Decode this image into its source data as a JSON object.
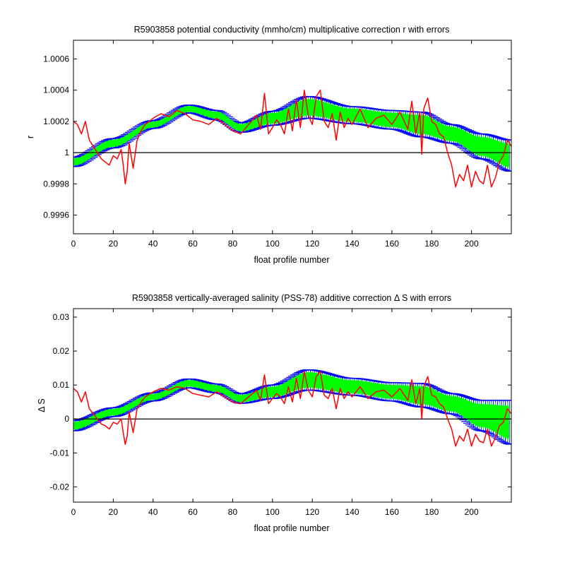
{
  "chart_data": [
    {
      "type": "line",
      "title": "R5903858 potential conductivity (mmho/cm) multiplicative correction r with errors",
      "xlabel": "float profile number",
      "ylabel": "r",
      "xlim": [
        0,
        220
      ],
      "ylim": [
        0.99948,
        1.00072
      ],
      "xticks": [
        0,
        20,
        40,
        60,
        80,
        100,
        120,
        140,
        160,
        180,
        200
      ],
      "xtick_labels": [
        "0",
        "20",
        "40",
        "60",
        "80",
        "100",
        "120",
        "140",
        "160",
        "180",
        "200"
      ],
      "yticks": [
        0.9996,
        0.9998,
        1.0,
        1.0002,
        1.0004,
        1.0006
      ],
      "ytick_labels": [
        "0.9996",
        "0.9998",
        "1",
        "1.0002",
        "1.0004",
        "1.0006"
      ],
      "reference_line": 1.0,
      "grid": false,
      "colors": {
        "fit": "#00ff00",
        "error": "#0000ff",
        "raw": "#ff0000",
        "ref": "#000000"
      },
      "fit_knots": {
        "x": [
          0,
          20,
          40,
          58,
          72,
          84,
          100,
          118,
          140,
          160,
          175,
          190,
          205,
          220
        ],
        "y": [
          0.99994,
          1.00006,
          1.00018,
          1.00028,
          1.00024,
          1.00016,
          1.00022,
          1.00029,
          1.00024,
          1.00021,
          1.00018,
          1.00012,
          1.00004,
          0.99998
        ]
      },
      "error_knots": {
        "x": [
          0,
          20,
          40,
          58,
          72,
          84,
          100,
          118,
          140,
          160,
          175,
          190,
          205,
          220
        ],
        "y": [
          3e-05,
          3e-05,
          2.5e-05,
          2.5e-05,
          3e-05,
          3e-05,
          4.5e-05,
          7e-05,
          5.5e-05,
          6e-05,
          8e-05,
          6e-05,
          8e-05,
          0.0001
        ]
      },
      "raw": {
        "x": [
          0,
          2,
          4,
          6,
          8,
          10,
          12,
          14,
          16,
          18,
          20,
          22,
          24,
          25,
          26,
          27,
          28,
          30,
          32,
          34,
          36,
          40,
          44,
          48,
          52,
          56,
          60,
          64,
          68,
          72,
          76,
          80,
          84,
          88,
          92,
          94,
          96,
          98,
          100,
          102,
          104,
          106,
          108,
          110,
          112,
          114,
          116,
          118,
          120,
          122,
          124,
          126,
          128,
          130,
          132,
          134,
          136,
          138,
          140,
          144,
          148,
          152,
          156,
          160,
          164,
          168,
          170,
          172,
          174,
          175,
          176,
          178,
          180,
          182,
          184,
          186,
          188,
          190,
          192,
          194,
          196,
          198,
          200,
          202,
          204,
          206,
          208,
          210,
          212,
          214,
          216,
          218,
          220
        ],
        "y": [
          1.0002,
          1.00018,
          1.00012,
          1.0002,
          1.00008,
          1.00004,
          1.0,
          0.99996,
          0.99994,
          0.99992,
          0.99998,
          0.99996,
          1.00002,
          0.99992,
          0.9998,
          0.99988,
          1.00006,
          0.9999,
          1.00008,
          1.00014,
          1.00018,
          1.00022,
          1.00025,
          1.00023,
          1.00027,
          1.00025,
          1.00021,
          1.0002,
          1.00018,
          1.00022,
          1.00018,
          1.00014,
          1.00012,
          1.00018,
          1.00024,
          1.00015,
          1.00038,
          1.00012,
          1.00016,
          1.00021,
          1.00018,
          1.00012,
          1.00028,
          1.00014,
          1.00034,
          1.00016,
          1.0004,
          1.00024,
          1.00018,
          1.00036,
          1.0004,
          1.0002,
          1.00016,
          1.00025,
          1.00008,
          1.00026,
          1.00016,
          1.00022,
          1.00018,
          1.00028,
          1.00016,
          1.00022,
          1.00024,
          1.00018,
          1.00026,
          1.00015,
          1.00033,
          1.00012,
          1.00026,
          0.99999,
          1.00028,
          1.00035,
          1.0002,
          1.00018,
          1.00012,
          1.0001,
          1.0,
          0.99992,
          0.99978,
          0.99986,
          0.99982,
          0.99992,
          0.99978,
          0.99988,
          0.99982,
          0.9998,
          0.99992,
          0.99978,
          0.99984,
          0.99994,
          0.99998,
          1.00008,
          1.00004
        ]
      }
    },
    {
      "type": "line",
      "title": "R5903858 vertically-averaged salinity (PSS-78) additive correction Δ S with errors",
      "xlabel": "float profile number",
      "ylabel": "Δ S",
      "xlim": [
        0,
        220
      ],
      "ylim": [
        -0.0245,
        0.0325
      ],
      "xticks": [
        0,
        20,
        40,
        60,
        80,
        100,
        120,
        140,
        160,
        180,
        200
      ],
      "xtick_labels": [
        "0",
        "20",
        "40",
        "60",
        "80",
        "100",
        "120",
        "140",
        "160",
        "180",
        "200"
      ],
      "yticks": [
        -0.02,
        -0.01,
        0,
        0.01,
        0.02,
        0.03
      ],
      "ytick_labels": [
        "-0.02",
        "-0.01",
        "0",
        "0.01",
        "0.02",
        "0.03"
      ],
      "reference_line": 0,
      "grid": false,
      "colors": {
        "fit": "#00ff00",
        "error": "#0000ff",
        "raw": "#ff0000",
        "ref": "#000000"
      },
      "fit_knots": {
        "x": [
          0,
          20,
          40,
          58,
          72,
          84,
          100,
          118,
          140,
          160,
          175,
          190,
          205,
          220
        ],
        "y": [
          -0.002,
          0.002,
          0.0065,
          0.0105,
          0.009,
          0.006,
          0.008,
          0.0115,
          0.0095,
          0.008,
          0.007,
          0.0045,
          0.001,
          -0.001
        ]
      },
      "error_knots": {
        "x": [
          0,
          20,
          40,
          58,
          72,
          84,
          100,
          118,
          140,
          160,
          175,
          190,
          205,
          220
        ],
        "y": [
          0.0015,
          0.0013,
          0.0012,
          0.0013,
          0.0013,
          0.0014,
          0.002,
          0.003,
          0.0025,
          0.0027,
          0.0035,
          0.003,
          0.0045,
          0.0065
        ]
      },
      "raw": {
        "x": [
          0,
          2,
          4,
          6,
          8,
          10,
          12,
          14,
          16,
          18,
          20,
          22,
          24,
          25,
          26,
          27,
          28,
          30,
          32,
          34,
          36,
          40,
          44,
          48,
          52,
          56,
          60,
          64,
          68,
          72,
          76,
          80,
          84,
          88,
          92,
          94,
          96,
          98,
          100,
          102,
          104,
          106,
          108,
          110,
          112,
          114,
          116,
          118,
          120,
          122,
          124,
          126,
          128,
          130,
          132,
          134,
          136,
          138,
          140,
          144,
          148,
          152,
          156,
          160,
          164,
          168,
          170,
          172,
          174,
          175,
          176,
          178,
          180,
          182,
          184,
          186,
          188,
          190,
          192,
          194,
          196,
          198,
          200,
          202,
          204,
          206,
          208,
          210,
          212,
          214,
          216,
          218,
          220
        ],
        "y": [
          0.009,
          0.008,
          0.005,
          0.008,
          0.003,
          0.0015,
          0.0,
          -0.0015,
          -0.002,
          -0.003,
          -0.001,
          -0.0015,
          0.0,
          -0.004,
          -0.0075,
          -0.005,
          0.002,
          -0.004,
          0.003,
          0.005,
          0.0065,
          0.008,
          0.009,
          0.0085,
          0.0095,
          0.009,
          0.0075,
          0.007,
          0.0065,
          0.008,
          0.0065,
          0.005,
          0.0045,
          0.0065,
          0.0085,
          0.0055,
          0.013,
          0.0045,
          0.006,
          0.0075,
          0.0065,
          0.0045,
          0.0095,
          0.005,
          0.012,
          0.006,
          0.014,
          0.0085,
          0.0065,
          0.0125,
          0.014,
          0.007,
          0.006,
          0.009,
          0.003,
          0.009,
          0.006,
          0.008,
          0.0065,
          0.0095,
          0.006,
          0.008,
          0.0085,
          0.0065,
          0.009,
          0.0055,
          0.0115,
          0.0045,
          0.009,
          0.0,
          0.0095,
          0.0125,
          0.007,
          0.0065,
          0.0045,
          0.0035,
          0.0,
          -0.003,
          -0.008,
          -0.005,
          -0.0065,
          -0.003,
          -0.008,
          -0.0045,
          -0.0065,
          -0.007,
          -0.003,
          -0.008,
          -0.0055,
          -0.002,
          -0.001,
          0.003,
          0.0015
        ]
      }
    }
  ]
}
